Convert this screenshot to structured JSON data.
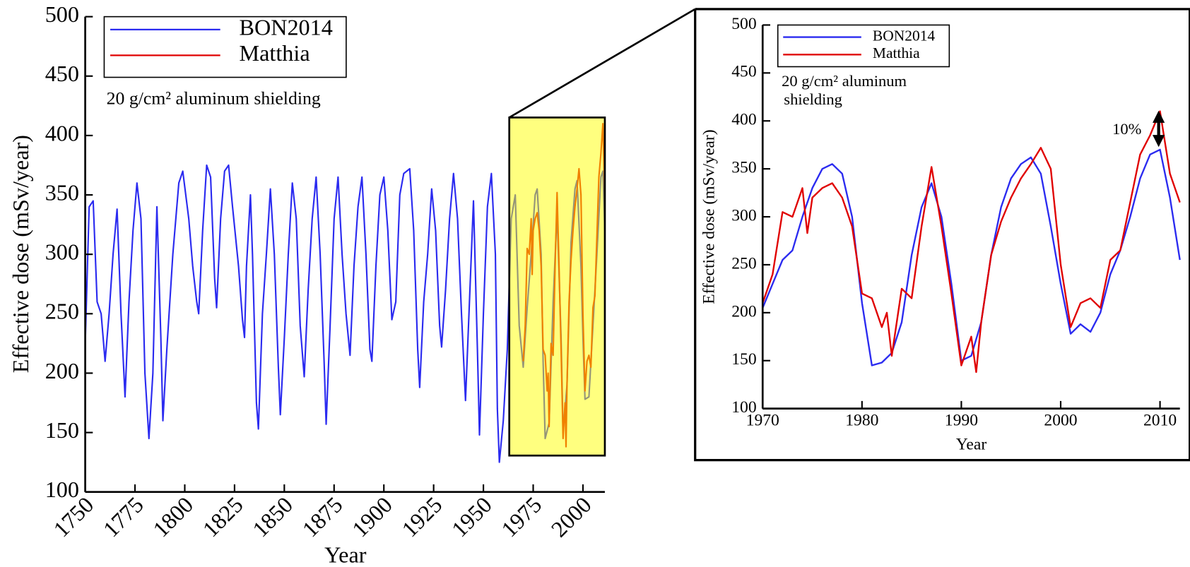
{
  "chart_data": [
    {
      "type": "line",
      "x_label": "Year",
      "y_label": "Effective dose (mSv/year)",
      "annotation": "20 g/cm² aluminum shielding",
      "xlim": [
        1750,
        2011
      ],
      "xticks": [
        1750,
        1775,
        1800,
        1825,
        1850,
        1875,
        1900,
        1925,
        1950,
        1975,
        2000
      ],
      "ylim": [
        100,
        500
      ],
      "yticks": [
        100,
        150,
        200,
        250,
        300,
        350,
        400,
        450,
        500
      ],
      "legend": "upper left",
      "series": [
        {
          "name": "BON2014",
          "color": "#2b2bf0",
          "x": [
            1750,
            1752,
            1754,
            1756,
            1758,
            1760,
            1762,
            1764,
            1766,
            1768,
            1770,
            1772,
            1774,
            1776,
            1778,
            1780,
            1782,
            1784,
            1786,
            1788,
            1789,
            1791,
            1794,
            1797,
            1799,
            1802,
            1804,
            1806,
            1807,
            1809,
            1811,
            1813,
            1815,
            1816,
            1818,
            1820,
            1822,
            1824,
            1827,
            1829,
            1830,
            1831,
            1833,
            1834,
            1836,
            1837,
            1839,
            1841,
            1843,
            1845,
            1847,
            1848,
            1850,
            1852,
            1854,
            1856,
            1858,
            1860,
            1862,
            1864,
            1866,
            1868,
            1870,
            1871,
            1873,
            1875,
            1877,
            1879,
            1881,
            1883,
            1885,
            1887,
            1889,
            1891,
            1893,
            1894,
            1896,
            1898,
            1900,
            1902,
            1904,
            1906,
            1908,
            1910,
            1913,
            1915,
            1917,
            1918,
            1920,
            1922,
            1924,
            1926,
            1928,
            1929,
            1931,
            1933,
            1935,
            1937,
            1939,
            1941,
            1943,
            1945,
            1947,
            1948,
            1950,
            1952,
            1954,
            1956,
            1957,
            1958,
            1960,
            1962,
            1964,
            1966,
            1968,
            1970,
            1972,
            1974,
            1976,
            1977,
            1979,
            1980,
            1981,
            1983,
            1985,
            1987,
            1989,
            1990,
            1992,
            1994,
            1996,
            1997,
            1999,
            2000,
            2001,
            2003,
            2005,
            2007,
            2009,
            2010,
            2011
          ],
          "values": [
            225,
            340,
            345,
            260,
            250,
            210,
            250,
            300,
            338,
            250,
            180,
            260,
            320,
            360,
            330,
            200,
            145,
            200,
            340,
            230,
            160,
            220,
            300,
            360,
            370,
            330,
            290,
            260,
            250,
            320,
            375,
            365,
            280,
            255,
            330,
            370,
            375,
            340,
            290,
            245,
            230,
            290,
            350,
            300,
            175,
            153,
            250,
            300,
            355,
            300,
            205,
            165,
            230,
            300,
            360,
            330,
            240,
            197,
            270,
            330,
            365,
            300,
            210,
            157,
            240,
            330,
            365,
            300,
            250,
            215,
            290,
            340,
            365,
            300,
            220,
            210,
            290,
            350,
            365,
            320,
            245,
            260,
            350,
            368,
            372,
            320,
            220,
            188,
            260,
            300,
            355,
            320,
            240,
            222,
            270,
            330,
            368,
            330,
            250,
            177,
            260,
            345,
            220,
            148,
            250,
            340,
            368,
            300,
            170,
            125,
            160,
            220,
            330,
            350,
            240,
            205,
            255,
            300,
            350,
            355,
            300,
            210,
            145,
            158,
            260,
            335,
            230,
            150,
            190,
            310,
            355,
            362,
            290,
            230,
            178,
            180,
            240,
            300,
            365,
            370,
            320
          ]
        },
        {
          "name": "Matthia",
          "color": "#e00000",
          "x": [
            1970,
            1971,
            1972,
            1973,
            1974,
            1974.5,
            1975,
            1976,
            1977,
            1978,
            1979,
            1980,
            1981,
            1982,
            1982.5,
            1983,
            1984,
            1985,
            1986,
            1987,
            1988,
            1989,
            1990,
            1991,
            1991.5,
            1992,
            1993,
            1994,
            1995,
            1996,
            1997,
            1998,
            1999,
            2000,
            2001,
            2002,
            2003,
            2004,
            2005,
            2006,
            2007,
            2008,
            2009,
            2010,
            2011
          ],
          "values": [
            210,
            240,
            305,
            300,
            330,
            283,
            320,
            330,
            335,
            320,
            290,
            220,
            215,
            185,
            200,
            155,
            225,
            215,
            290,
            352,
            290,
            220,
            145,
            175,
            138,
            190,
            260,
            295,
            320,
            340,
            355,
            372,
            350,
            250,
            185,
            210,
            215,
            205,
            255,
            265,
            315,
            365,
            385,
            410,
            345
          ]
        }
      ]
    },
    {
      "type": "line",
      "x_label": "Year",
      "y_label": "Effective dose (mSv/year)",
      "annotation_lines": [
        "20 g/cm² aluminum",
        "shielding"
      ],
      "arrow_label": "10%",
      "xlim": [
        1970,
        2012
      ],
      "xticks": [
        1970,
        1980,
        1990,
        2000,
        2010
      ],
      "ylim": [
        100,
        500
      ],
      "yticks": [
        100,
        150,
        200,
        250,
        300,
        350,
        400,
        450,
        500
      ],
      "legend": "upper left",
      "series": [
        {
          "name": "BON2014",
          "color": "#2b2bf0",
          "x": [
            1970,
            1971,
            1972,
            1973,
            1974,
            1975,
            1976,
            1977,
            1978,
            1979,
            1980,
            1981,
            1982,
            1983,
            1984,
            1985,
            1986,
            1987,
            1988,
            1989,
            1990,
            1991,
            1992,
            1993,
            1994,
            1995,
            1996,
            1997,
            1998,
            1999,
            2000,
            2001,
            2002,
            2003,
            2004,
            2005,
            2006,
            2007,
            2008,
            2009,
            2010,
            2011,
            2012
          ],
          "values": [
            205,
            230,
            255,
            265,
            300,
            330,
            350,
            355,
            345,
            300,
            210,
            145,
            148,
            158,
            190,
            260,
            310,
            335,
            300,
            230,
            150,
            155,
            190,
            260,
            310,
            340,
            355,
            362,
            345,
            290,
            230,
            178,
            188,
            180,
            200,
            240,
            265,
            300,
            340,
            365,
            370,
            320,
            255
          ]
        },
        {
          "name": "Matthia",
          "color": "#e00000",
          "x": [
            1970,
            1971,
            1972,
            1973,
            1974,
            1974.5,
            1975,
            1976,
            1977,
            1978,
            1979,
            1980,
            1981,
            1982,
            1982.5,
            1983,
            1984,
            1985,
            1986,
            1987,
            1988,
            1989,
            1990,
            1991,
            1991.5,
            1992,
            1993,
            1994,
            1995,
            1996,
            1997,
            1998,
            1999,
            2000,
            2001,
            2002,
            2003,
            2004,
            2005,
            2006,
            2007,
            2008,
            2009,
            2010,
            2011,
            2012
          ],
          "values": [
            210,
            240,
            305,
            300,
            330,
            283,
            320,
            330,
            335,
            320,
            290,
            220,
            215,
            185,
            200,
            155,
            225,
            215,
            290,
            352,
            290,
            220,
            145,
            175,
            138,
            190,
            260,
            295,
            320,
            340,
            355,
            372,
            350,
            250,
            185,
            210,
            215,
            205,
            255,
            265,
            315,
            365,
            385,
            410,
            345,
            315
          ]
        }
      ]
    }
  ]
}
